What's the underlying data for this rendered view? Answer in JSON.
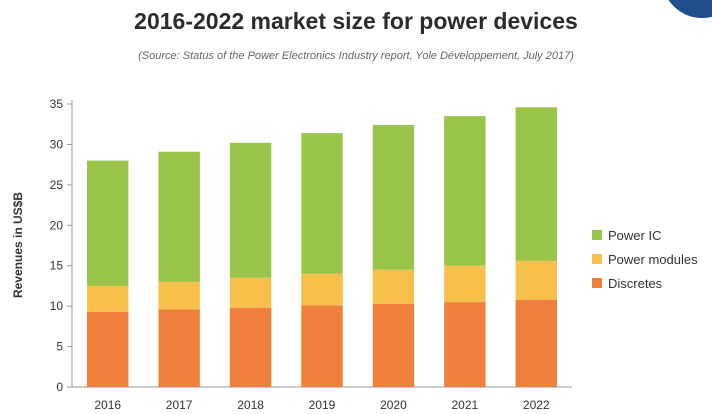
{
  "chart_data": {
    "type": "bar",
    "stacked": true,
    "title": "2016-2022 market size for power devices",
    "subtitle": "(Source: Status of the Power Electronics Industry report, Yole Développement, July 2017)",
    "ylabel": "Revenues in US$B",
    "xlabel": "",
    "ylim": [
      0,
      35
    ],
    "yticks": [
      0,
      5,
      10,
      15,
      20,
      25,
      30,
      35
    ],
    "grid": false,
    "legend_position": "right",
    "categories": [
      "2016",
      "2017",
      "2018",
      "2019",
      "2020",
      "2021",
      "2022"
    ],
    "series": [
      {
        "name": "Discretes",
        "color": "#f07f3c",
        "values": [
          9.3,
          9.6,
          9.8,
          10.1,
          10.3,
          10.5,
          10.8
        ]
      },
      {
        "name": "Power modules",
        "color": "#f9bf4b",
        "values": [
          3.2,
          3.4,
          3.7,
          3.9,
          4.2,
          4.5,
          4.8
        ]
      },
      {
        "name": "Power IC",
        "color": "#9ac449",
        "values": [
          15.5,
          16.1,
          16.7,
          17.4,
          17.9,
          18.5,
          19.0
        ]
      }
    ],
    "legend_order": [
      "Power IC",
      "Power modules",
      "Discretes"
    ]
  }
}
